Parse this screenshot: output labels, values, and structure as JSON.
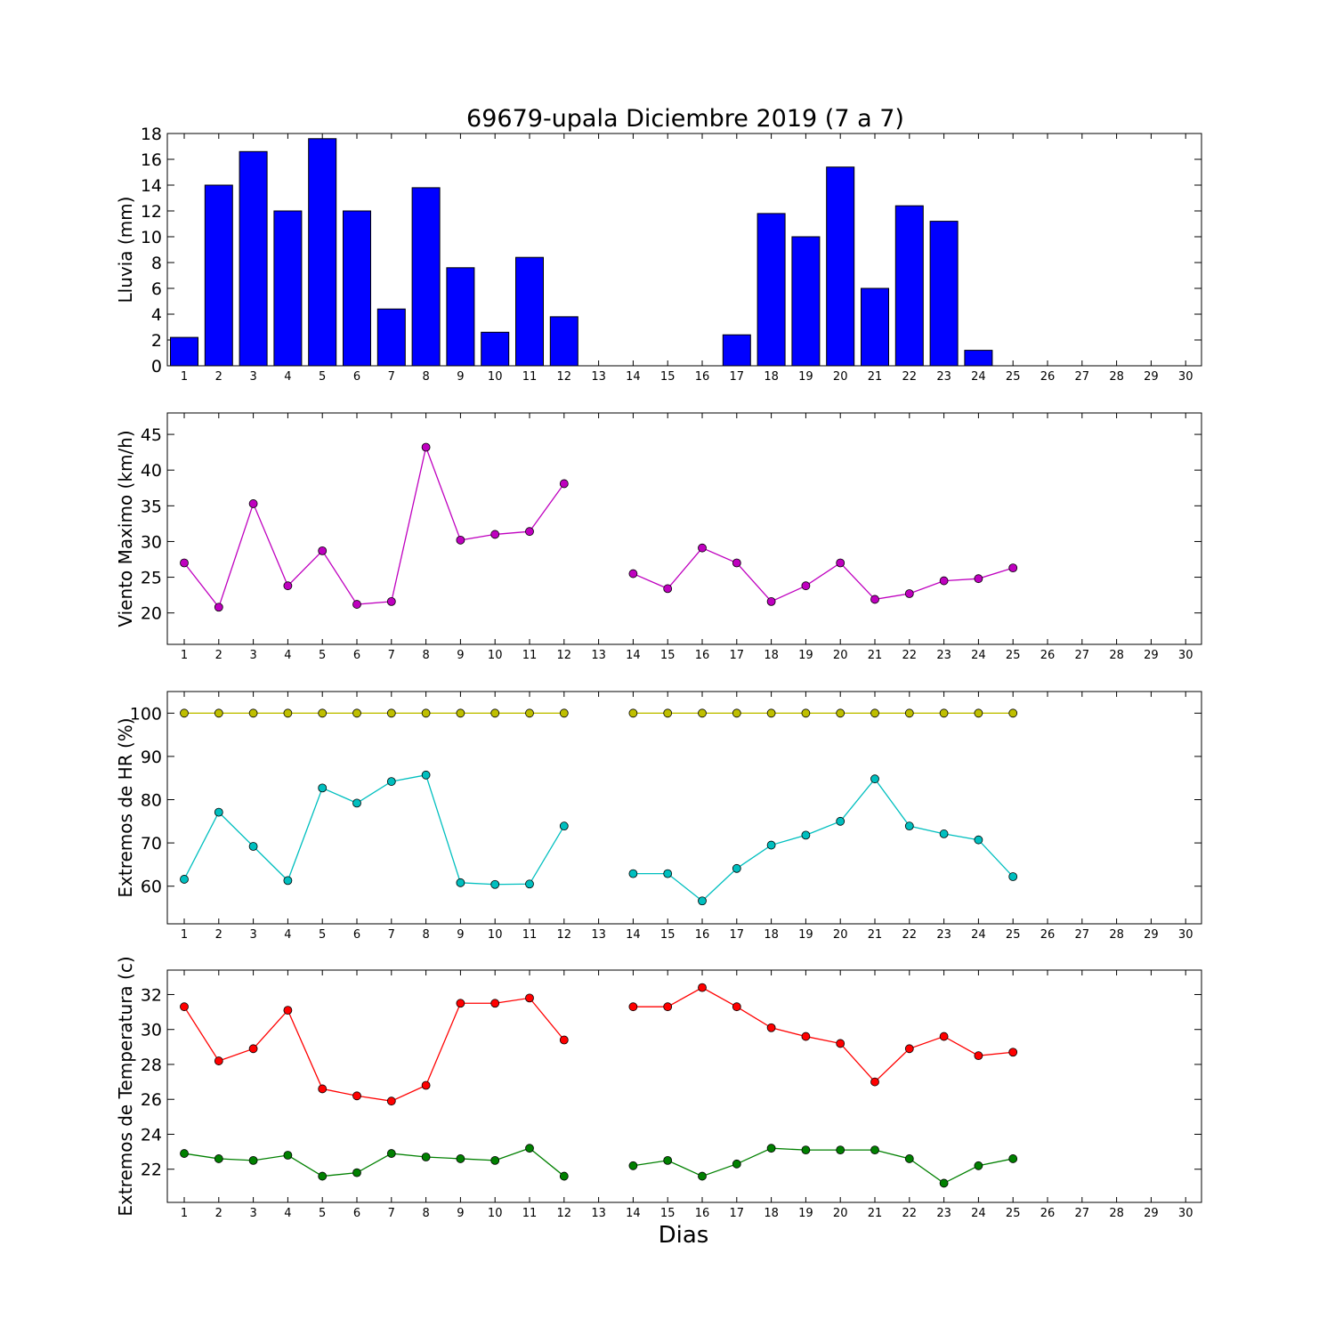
{
  "chart_data": [
    {
      "type": "bar",
      "title": "69679-upala Diciembre 2019  (7 a 7)",
      "ylabel": "Lluvia (mm)",
      "xlabel": "",
      "categories": [
        "1",
        "2",
        "3",
        "4",
        "5",
        "6",
        "7",
        "8",
        "9",
        "10",
        "11",
        "12",
        "13",
        "14",
        "15",
        "16",
        "17",
        "18",
        "19",
        "20",
        "21",
        "22",
        "23",
        "24",
        "25",
        "26",
        "27",
        "28",
        "29",
        "30"
      ],
      "values": [
        2.2,
        14.0,
        16.6,
        12.0,
        17.6,
        12.0,
        4.4,
        13.8,
        7.6,
        2.6,
        8.4,
        3.8,
        0,
        0,
        0,
        0,
        2.4,
        11.8,
        10.0,
        15.4,
        6.0,
        12.4,
        11.2,
        1.2,
        0,
        0,
        0,
        0,
        0,
        0
      ],
      "ylim": [
        0,
        18
      ],
      "yticks": [
        0,
        2,
        4,
        6,
        8,
        10,
        12,
        14,
        16,
        18
      ],
      "color": "#0000ff",
      "grid": false
    },
    {
      "type": "line",
      "title": "",
      "ylabel": "Viento Maximo (km/h)",
      "xlabel": "",
      "categories": [
        "1",
        "2",
        "3",
        "4",
        "5",
        "6",
        "7",
        "8",
        "9",
        "10",
        "11",
        "12",
        "13",
        "14",
        "15",
        "16",
        "17",
        "18",
        "19",
        "20",
        "21",
        "22",
        "23",
        "24",
        "25",
        "26",
        "27",
        "28",
        "29",
        "30"
      ],
      "ylim": [
        15.6,
        48
      ],
      "yticks": [
        20,
        25,
        30,
        35,
        40,
        45
      ],
      "series": [
        {
          "color": "#bf00bf",
          "values": [
            27.0,
            20.8,
            35.3,
            23.8,
            28.7,
            21.2,
            21.6,
            43.2,
            30.2,
            31.0,
            31.4,
            38.1,
            null,
            25.5,
            23.4,
            29.1,
            27.0,
            21.6,
            23.8,
            27.0,
            21.9,
            22.7,
            24.5,
            24.8,
            26.3,
            null,
            null,
            null,
            null,
            null
          ]
        }
      ],
      "grid": false
    },
    {
      "type": "line",
      "title": "",
      "ylabel": "Extremos de HR (%)",
      "xlabel": "",
      "categories": [
        "1",
        "2",
        "3",
        "4",
        "5",
        "6",
        "7",
        "8",
        "9",
        "10",
        "11",
        "12",
        "13",
        "14",
        "15",
        "16",
        "17",
        "18",
        "19",
        "20",
        "21",
        "22",
        "23",
        "24",
        "25",
        "26",
        "27",
        "28",
        "29",
        "30"
      ],
      "ylim": [
        51.3,
        105
      ],
      "yticks": [
        60,
        70,
        80,
        90,
        100
      ],
      "series": [
        {
          "color": "#bfbf00",
          "values": [
            100,
            100,
            100,
            100,
            100,
            100,
            100,
            100,
            100,
            100,
            100,
            100,
            null,
            100,
            100,
            100,
            100,
            100,
            100,
            100,
            100,
            100,
            100,
            100,
            100,
            null,
            null,
            null,
            null,
            null
          ]
        },
        {
          "color": "#00bfbf",
          "values": [
            61.6,
            77.1,
            69.2,
            61.3,
            82.7,
            79.2,
            84.2,
            85.7,
            60.8,
            60.4,
            60.5,
            73.9,
            null,
            62.9,
            62.9,
            56.6,
            64.1,
            69.5,
            71.8,
            75.0,
            84.8,
            73.9,
            72.1,
            70.7,
            62.2,
            null,
            null,
            null,
            null,
            null
          ]
        }
      ],
      "grid": false
    },
    {
      "type": "line",
      "title": "",
      "ylabel": "Extremos de Temperatura (c)",
      "xlabel": "Dias",
      "categories": [
        "1",
        "2",
        "3",
        "4",
        "5",
        "6",
        "7",
        "8",
        "9",
        "10",
        "11",
        "12",
        "13",
        "14",
        "15",
        "16",
        "17",
        "18",
        "19",
        "20",
        "21",
        "22",
        "23",
        "24",
        "25",
        "26",
        "27",
        "28",
        "29",
        "30"
      ],
      "ylim": [
        20.1,
        33.4
      ],
      "yticks": [
        22,
        24,
        26,
        28,
        30,
        32
      ],
      "series": [
        {
          "color": "#ff0000",
          "values": [
            31.3,
            28.2,
            28.9,
            31.1,
            26.6,
            26.2,
            25.9,
            26.8,
            31.5,
            31.5,
            31.8,
            29.4,
            null,
            31.3,
            31.3,
            32.4,
            31.3,
            30.1,
            29.6,
            29.2,
            27.0,
            28.9,
            29.6,
            28.5,
            28.7,
            null,
            null,
            null,
            null,
            null
          ]
        },
        {
          "color": "#008000",
          "values": [
            22.9,
            22.6,
            22.5,
            22.8,
            21.6,
            21.8,
            22.9,
            22.7,
            22.6,
            22.5,
            23.2,
            21.6,
            null,
            22.2,
            22.5,
            21.6,
            22.3,
            23.2,
            23.1,
            23.1,
            23.1,
            22.6,
            21.2,
            22.2,
            22.6,
            null,
            null,
            null,
            null,
            null
          ]
        }
      ],
      "grid": false
    }
  ]
}
